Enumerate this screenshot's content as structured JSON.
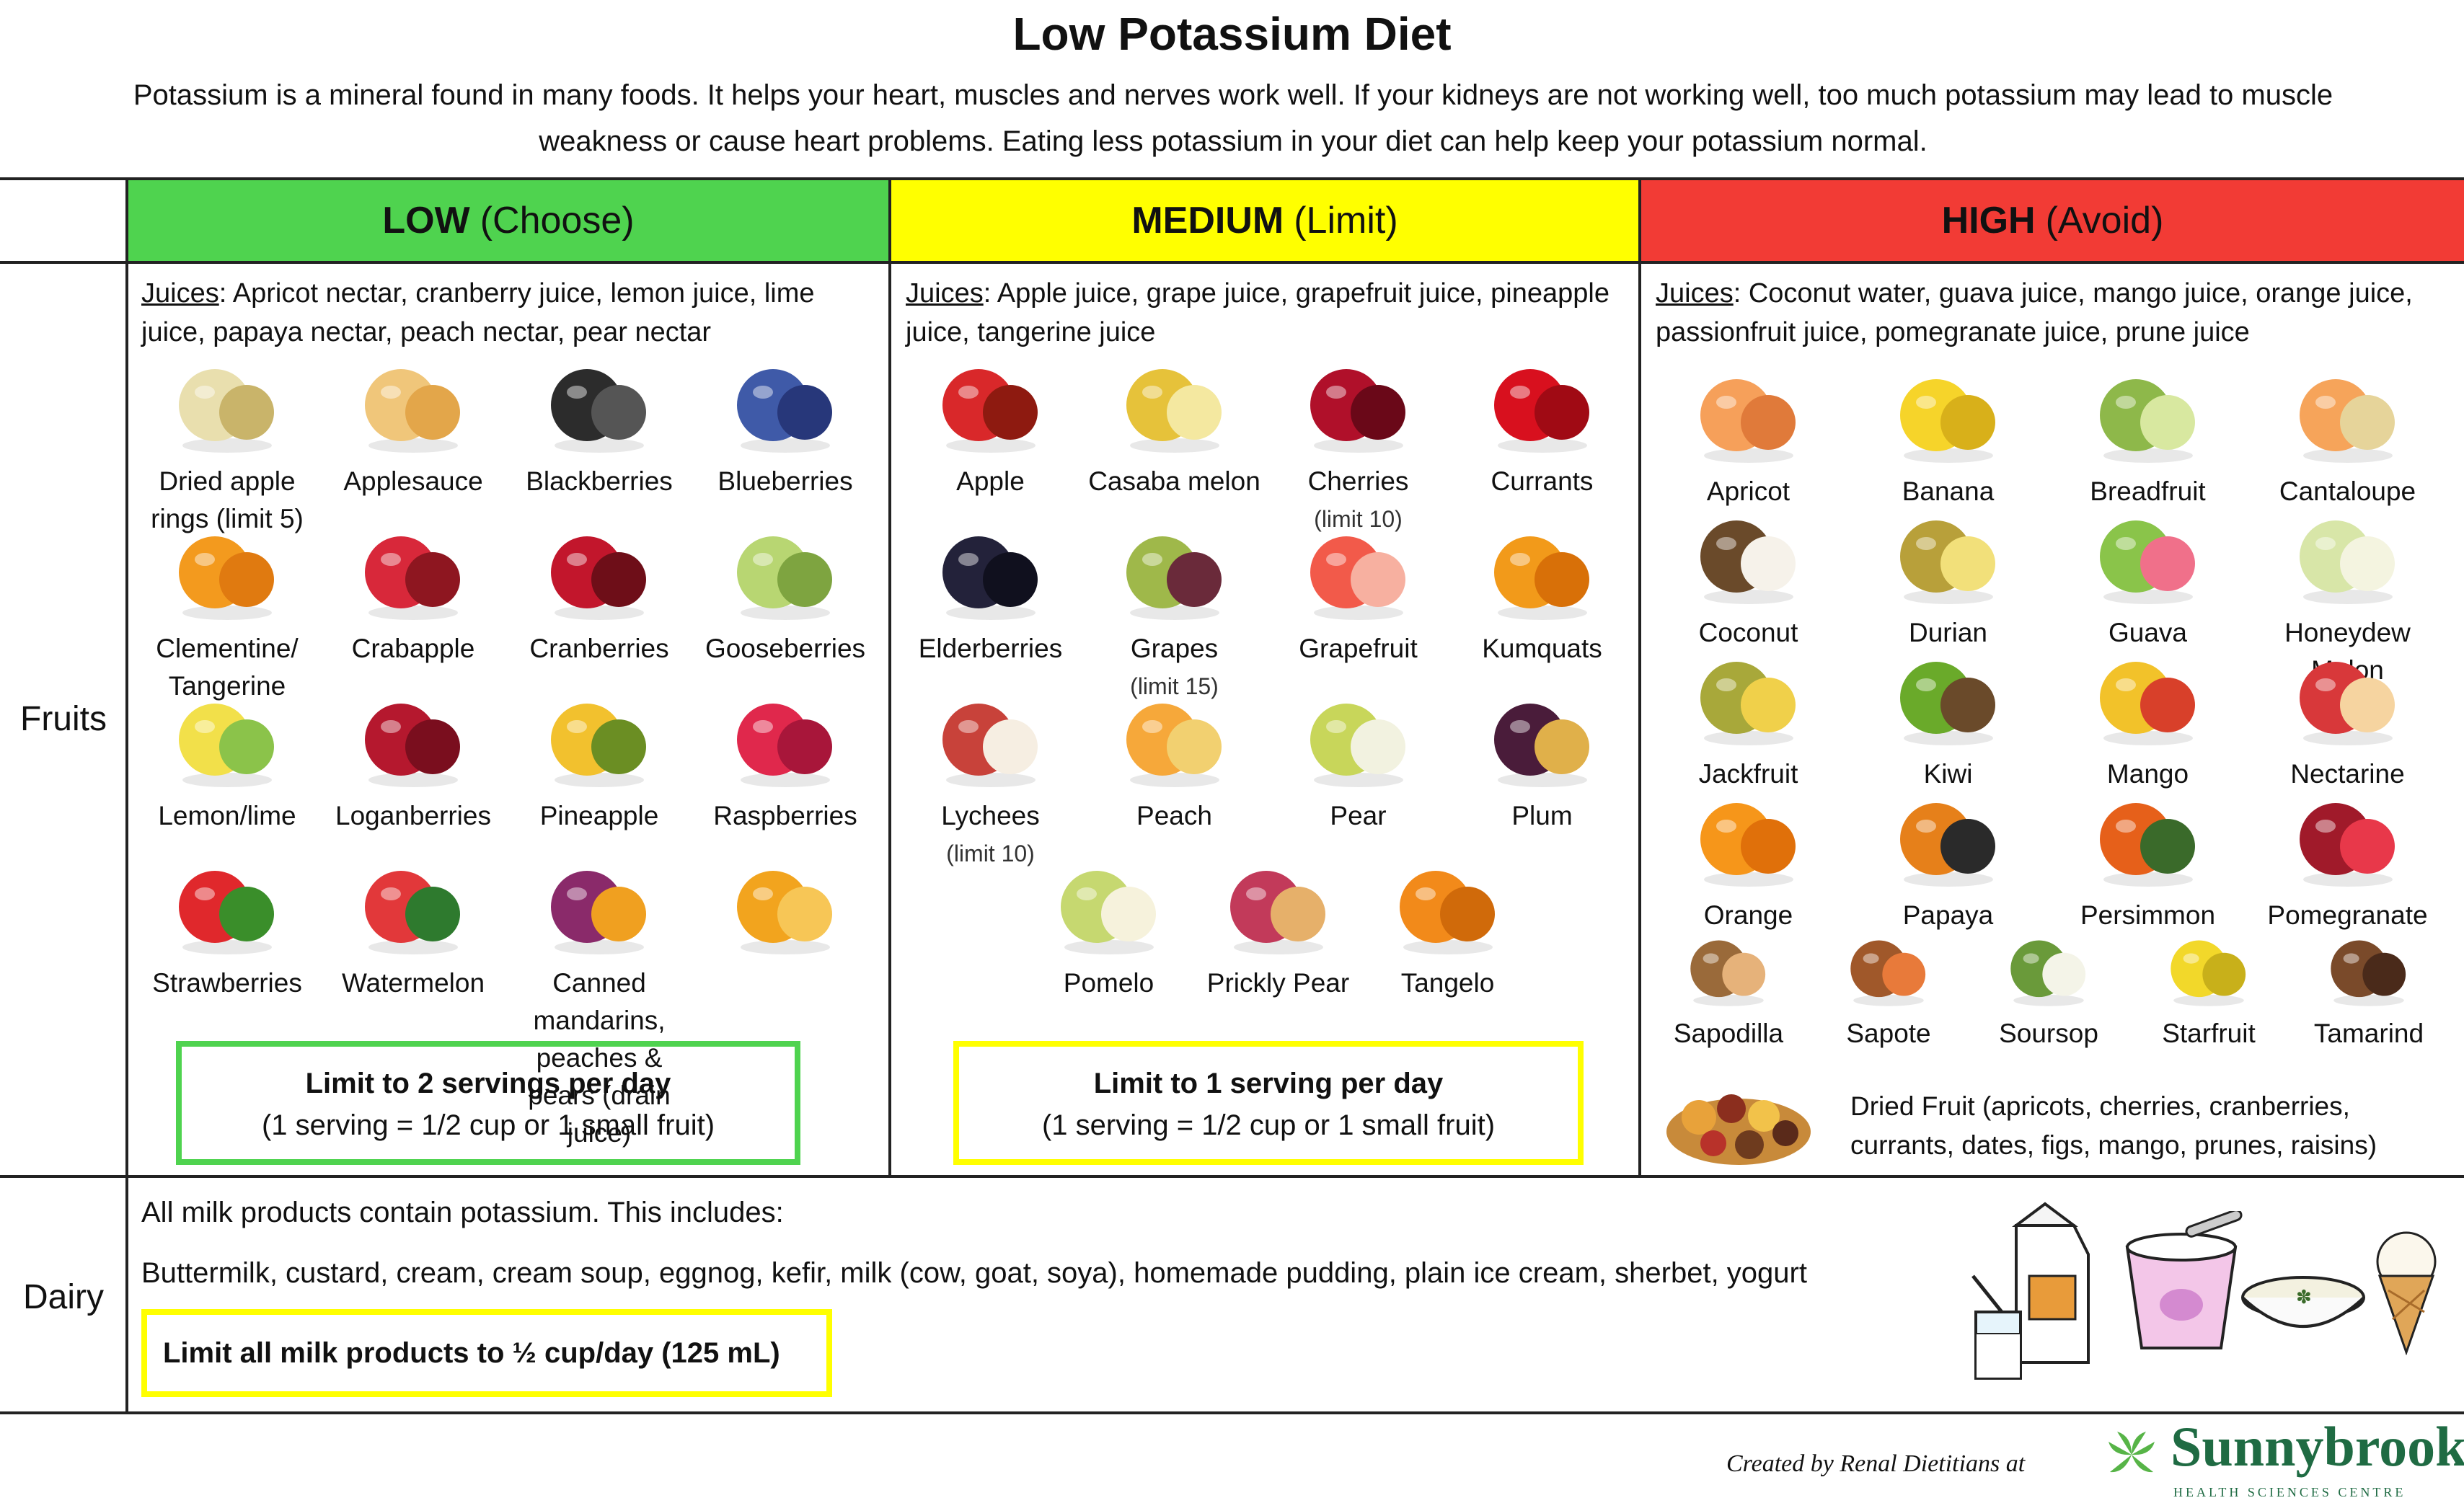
{
  "title": "Low Potassium Diet",
  "intro": "Potassium is a mineral found in many foods. It helps your heart, muscles and nerves work well.  If your kidneys are not working well, too much potassium may lead to muscle weakness or cause heart problems. Eating less potassium in your diet can help keep your potassium normal.",
  "colors": {
    "low": "#4fd34f",
    "medium": "#ffff00",
    "high": "#f23b35",
    "brand": "#1f6b43"
  },
  "headers": {
    "low": {
      "bold": "LOW",
      "sub": "(Choose)"
    },
    "medium": {
      "bold": "MEDIUM",
      "sub": "(Limit)"
    },
    "high": {
      "bold": "HIGH",
      "sub": "(Avoid)"
    }
  },
  "rows": {
    "fruits": "Fruits",
    "dairy": "Dairy"
  },
  "low": {
    "juices_label": "Juices",
    "juices_text": ":  Apricot nectar, cranberry juice, lemon juice, lime juice, papaya nectar, peach nectar, pear nectar",
    "foods": [
      {
        "name": "Dried apple rings (limit 5)",
        "icon": "dried-apple-rings"
      },
      {
        "name": "Applesauce",
        "icon": "applesauce"
      },
      {
        "name": "Blackberries",
        "icon": "blackberries"
      },
      {
        "name": "Blueberries",
        "icon": "blueberries"
      },
      {
        "name": "Clementine/ Tangerine",
        "icon": "clementine"
      },
      {
        "name": "Crabapple",
        "icon": "crabapple"
      },
      {
        "name": "Cranberries",
        "icon": "cranberries"
      },
      {
        "name": "Gooseberries",
        "icon": "gooseberries"
      },
      {
        "name": "Lemon/lime",
        "icon": "lemon-lime"
      },
      {
        "name": "Loganberries",
        "icon": "loganberries"
      },
      {
        "name": "Pineapple",
        "icon": "pineapple"
      },
      {
        "name": "Raspberries",
        "icon": "raspberries"
      },
      {
        "name": "Strawberries",
        "icon": "strawberries"
      },
      {
        "name": "Watermelon",
        "icon": "watermelon"
      },
      {
        "name": "Canned mandarins, peaches & pears (drain juice)",
        "icon": "canned-fruit"
      },
      {
        "name": "",
        "icon": "fruit-cup"
      }
    ],
    "limit_title": "Limit to 2 servings per day",
    "limit_sub": "(1 serving = 1/2 cup or 1 small fruit)"
  },
  "medium": {
    "juices_label": "Juices",
    "juices_text": ": Apple juice, grape juice, grapefruit juice, pineapple juice, tangerine juice",
    "foods": [
      {
        "name": "Apple",
        "icon": "apple"
      },
      {
        "name": "Casaba melon",
        "icon": "casaba-melon"
      },
      {
        "name": "Cherries",
        "note": "(limit 10)",
        "icon": "cherries"
      },
      {
        "name": "Currants",
        "icon": "currants"
      },
      {
        "name": "Elderberries",
        "icon": "elderberries"
      },
      {
        "name": "Grapes",
        "note": "(limit 15)",
        "icon": "grapes"
      },
      {
        "name": "Grapefruit",
        "icon": "grapefruit"
      },
      {
        "name": "Kumquats",
        "icon": "kumquats"
      },
      {
        "name": "Lychees",
        "note": "(limit 10)",
        "icon": "lychees"
      },
      {
        "name": "Peach",
        "icon": "peach"
      },
      {
        "name": "Pear",
        "icon": "pear"
      },
      {
        "name": "Plum",
        "icon": "plum"
      },
      {
        "name": "Pomelo",
        "icon": "pomelo"
      },
      {
        "name": "Prickly Pear",
        "icon": "prickly-pear"
      },
      {
        "name": "Tangelo",
        "icon": "tangelo"
      }
    ],
    "limit_title": "Limit to 1 serving per day",
    "limit_sub": "(1 serving = 1/2 cup or 1 small fruit)"
  },
  "high": {
    "juices_label": "Juices",
    "juices_text": ": Coconut water, guava juice, mango juice, orange juice, passionfruit juice, pomegranate juice, prune juice",
    "foods": [
      {
        "name": "Apricot",
        "icon": "apricot"
      },
      {
        "name": "Banana",
        "icon": "banana"
      },
      {
        "name": "Breadfruit",
        "icon": "breadfruit"
      },
      {
        "name": "Cantaloupe",
        "icon": "cantaloupe"
      },
      {
        "name": "Coconut",
        "icon": "coconut"
      },
      {
        "name": "Durian",
        "icon": "durian"
      },
      {
        "name": "Guava",
        "icon": "guava"
      },
      {
        "name": "Honeydew Melon",
        "icon": "honeydew"
      },
      {
        "name": "Jackfruit",
        "icon": "jackfruit"
      },
      {
        "name": "Kiwi",
        "icon": "kiwi"
      },
      {
        "name": "Mango",
        "icon": "mango"
      },
      {
        "name": "Nectarine",
        "icon": "nectarine"
      },
      {
        "name": "Orange",
        "icon": "orange"
      },
      {
        "name": "Papaya",
        "icon": "papaya"
      },
      {
        "name": "Persimmon",
        "icon": "persimmon"
      },
      {
        "name": "Pomegranate",
        "icon": "pomegranate"
      },
      {
        "name": "Sapodilla",
        "icon": "sapodilla"
      },
      {
        "name": "Sapote",
        "icon": "sapote"
      },
      {
        "name": "Soursop",
        "icon": "soursop"
      },
      {
        "name": "Starfruit",
        "icon": "starfruit"
      },
      {
        "name": "Tamarind",
        "icon": "tamarind"
      }
    ],
    "dried_fruit": "Dried Fruit (apricots, cherries, cranberries, currants, dates, figs, mango, prunes, raisins)"
  },
  "dairy": {
    "intro": "All milk products contain potassium.  This includes:",
    "list": "Buttermilk, custard, cream, cream soup, eggnog, kefir, milk (cow, goat, soya), homemade pudding, plain ice cream, sherbet, yogurt",
    "limit": "Limit all milk products to ½ cup/day (125 mL)"
  },
  "footer": {
    "credit": "Created by Renal Dietitians at",
    "brand": "Sunnybrook",
    "brand_sub": "HEALTH SCIENCES CENTRE"
  }
}
